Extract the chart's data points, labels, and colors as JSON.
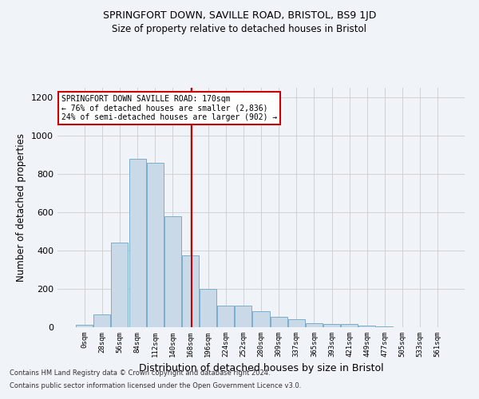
{
  "title1": "SPRINGFORT DOWN, SAVILLE ROAD, BRISTOL, BS9 1JD",
  "title2": "Size of property relative to detached houses in Bristol",
  "xlabel": "Distribution of detached houses by size in Bristol",
  "ylabel": "Number of detached properties",
  "footnote1": "Contains HM Land Registry data © Crown copyright and database right 2024.",
  "footnote2": "Contains public sector information licensed under the Open Government Licence v3.0.",
  "bar_labels": [
    "0sqm",
    "28sqm",
    "56sqm",
    "84sqm",
    "112sqm",
    "140sqm",
    "168sqm",
    "196sqm",
    "224sqm",
    "252sqm",
    "280sqm",
    "309sqm",
    "337sqm",
    "365sqm",
    "393sqm",
    "421sqm",
    "449sqm",
    "477sqm",
    "505sqm",
    "533sqm",
    "561sqm"
  ],
  "bar_values": [
    12,
    65,
    440,
    880,
    860,
    580,
    375,
    200,
    112,
    112,
    85,
    55,
    42,
    22,
    18,
    18,
    8,
    5,
    2,
    2,
    2
  ],
  "bar_color": "#c9d9e8",
  "bar_edge_color": "#7aaecb",
  "ylim": [
    0,
    1250
  ],
  "yticks": [
    0,
    200,
    400,
    600,
    800,
    1000,
    1200
  ],
  "property_size_sqm": 170,
  "vline_color": "#cc0000",
  "annotation_text": "SPRINGFORT DOWN SAVILLE ROAD: 170sqm\n← 76% of detached houses are smaller (2,836)\n24% of semi-detached houses are larger (902) →",
  "annotation_box_color": "#ffffff",
  "annotation_box_edge": "#cc0000",
  "bg_color": "#f0f4f8"
}
